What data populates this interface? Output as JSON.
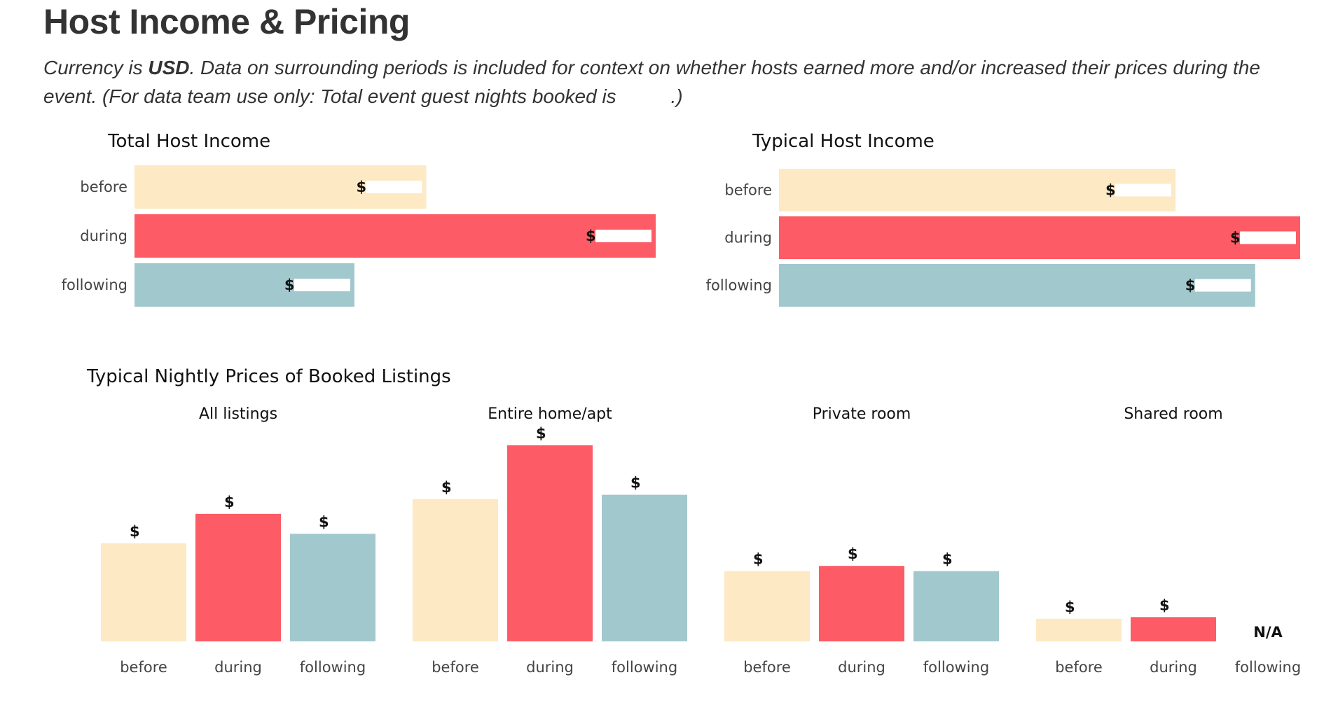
{
  "header": {
    "title": "Host Income & Pricing",
    "subtitle_prefix": "Currency is ",
    "subtitle_currency": "USD",
    "subtitle_main": ". Data on surrounding periods is included for context on whether hosts earned more and/or increased their prices during the event. (For data team use only: Total event guest nights booked is ",
    "subtitle_end": ".)"
  },
  "colors": {
    "before": "#fde9c3",
    "during": "#fd5b65",
    "following": "#a1c8cd",
    "redaction": "#ffffff"
  },
  "chart_data": [
    {
      "id": "total-host-income",
      "type": "bar",
      "orientation": "horizontal",
      "title": "Total Host Income",
      "categories": [
        "before",
        "during",
        "following"
      ],
      "values": [
        337,
        602,
        254
      ],
      "value_labels": [
        "$",
        "$",
        "$"
      ],
      "note": "values relative; printed amounts redacted"
    },
    {
      "id": "typical-host-income",
      "type": "bar",
      "orientation": "horizontal",
      "title": "Typical Host Income",
      "categories": [
        "before",
        "during",
        "following"
      ],
      "values": [
        458,
        602,
        550
      ],
      "value_labels": [
        "$",
        "$",
        "$"
      ],
      "note": "values relative; printed amounts redacted"
    },
    {
      "id": "typical-nightly-prices",
      "type": "bar",
      "title": "Typical Nightly Prices of Booked Listings",
      "panels": [
        {
          "title": "All listings",
          "categories": [
            "before",
            "during",
            "following"
          ],
          "values": [
            113,
            147,
            124
          ],
          "value_labels": [
            "$",
            "$",
            "$"
          ]
        },
        {
          "title": "Entire home/apt",
          "categories": [
            "before",
            "during",
            "following"
          ],
          "values": [
            164,
            226,
            169
          ],
          "value_labels": [
            "$",
            "$",
            "$"
          ]
        },
        {
          "title": "Private room",
          "categories": [
            "before",
            "during",
            "following"
          ],
          "values": [
            81,
            87,
            81
          ],
          "value_labels": [
            "$",
            "$",
            "$"
          ]
        },
        {
          "title": "Shared room",
          "categories": [
            "before",
            "during",
            "following"
          ],
          "values": [
            26,
            28,
            null
          ],
          "value_labels": [
            "$",
            "$",
            "N/A"
          ]
        }
      ]
    }
  ]
}
